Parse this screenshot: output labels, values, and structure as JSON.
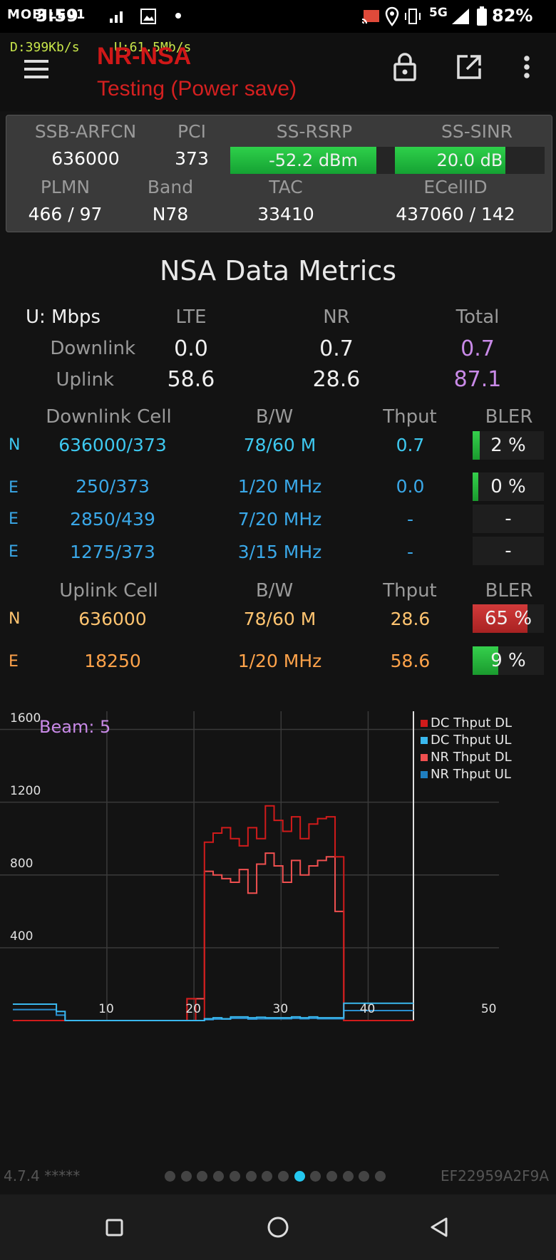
{
  "status_bar": {
    "carrier_logo": "MOBILE01",
    "time": "3:59",
    "network": "5G",
    "battery": "82%",
    "icons": [
      "wifi-calling-icon",
      "image-icon",
      "cast-icon",
      "location-icon",
      "vibrate-icon",
      "signal-icon",
      "battery-icon"
    ]
  },
  "header": {
    "download_rate": "D:399Kb/s",
    "upload_rate": "U:61.5Mb/s",
    "title": "NR-NSA",
    "subtitle": "Testing (Power save)",
    "icons": [
      "menu-icon",
      "lock-icon",
      "open-external-icon",
      "more-vert-icon"
    ]
  },
  "signal_panel": {
    "ssb_arfcn_label": "SSB-ARFCN",
    "ssb_arfcn": "636000",
    "pci_label": "PCI",
    "pci": "373",
    "rsrp_label": "SS-RSRP",
    "rsrp": "-52.2 dBm",
    "rsrp_level": 0.88,
    "sinr_label": "SS-SINR",
    "sinr": "20.0 dB",
    "sinr_level": 0.74,
    "plmn_label": "PLMN",
    "plmn": "466 / 97",
    "band_label": "Band",
    "band": "N78",
    "tac_label": "TAC",
    "tac": "33410",
    "ecellid_label": "ECellID",
    "ecellid": "437060 / 142"
  },
  "metrics": {
    "title": "NSA Data Metrics",
    "unit": "U: Mbps",
    "col_lte": "LTE",
    "col_nr": "NR",
    "col_total": "Total",
    "downlink_label": "Downlink",
    "downlink": {
      "lte": "0.0",
      "nr": "0.7",
      "total": "0.7"
    },
    "uplink_label": "Uplink",
    "uplink": {
      "lte": "58.6",
      "nr": "28.6",
      "total": "87.1"
    }
  },
  "downlink_cells": {
    "headers": {
      "cell": "Downlink Cell",
      "bw": "B/W",
      "thput": "Thput",
      "bler": "BLER"
    },
    "rows": [
      {
        "rat": "N",
        "cell": "636000/373",
        "bw": "78/60 M",
        "thput": "0.7",
        "bler": "2 %",
        "bler_level": 0.1
      },
      {
        "rat": "E",
        "cell": "250/373",
        "bw": "1/20 MHz",
        "thput": "0.0",
        "bler": "0 %",
        "bler_level": 0.08
      },
      {
        "rat": "E",
        "cell": "2850/439",
        "bw": "7/20 MHz",
        "thput": "-",
        "bler": "-",
        "bler_level": 0
      },
      {
        "rat": "E",
        "cell": "1275/373",
        "bw": "3/15 MHz",
        "thput": "-",
        "bler": "-",
        "bler_level": 0
      }
    ]
  },
  "uplink_cells": {
    "headers": {
      "cell": "Uplink Cell",
      "bw": "B/W",
      "thput": "Thput",
      "bler": "BLER"
    },
    "rows": [
      {
        "rat": "N",
        "cell": "636000",
        "bw": "78/60 M",
        "thput": "28.6",
        "bler": "65 %",
        "bler_level": 0.77
      },
      {
        "rat": "E",
        "cell": "18250",
        "bw": "1/20 MHz",
        "thput": "58.6",
        "bler": "9 %",
        "bler_level": 0.36
      }
    ]
  },
  "chart_data": {
    "type": "line",
    "annotation": "Beam: 5",
    "xlim": [
      0,
      50
    ],
    "ylim": [
      0,
      1700
    ],
    "x_ticks": [
      "10",
      "20",
      "30",
      "40",
      "50"
    ],
    "y_ticks": [
      "400",
      "800",
      "1200",
      "1600"
    ],
    "grid": true,
    "legend_position": "top-right",
    "colors": {
      "DC Thput DL": "#d11b1b",
      "DC Thput UL": "#3ab8ee",
      "NR Thput DL": "#f05050",
      "NR Thput UL": "#2a8fd0"
    },
    "x": [
      0,
      1,
      2,
      3,
      4,
      5,
      6,
      7,
      8,
      9,
      10,
      11,
      12,
      13,
      14,
      15,
      16,
      17,
      18,
      19,
      20,
      21,
      22,
      23,
      24,
      25,
      26,
      27,
      28,
      29,
      30,
      31,
      32,
      33,
      34,
      35,
      36,
      37,
      38,
      39,
      40,
      41,
      42,
      43,
      44,
      45,
      46
    ],
    "series": [
      {
        "name": "DC Thput DL",
        "values": [
          0,
          0,
          0,
          0,
          0,
          0,
          0,
          0,
          0,
          0,
          0,
          0,
          0,
          0,
          0,
          0,
          0,
          0,
          0,
          0,
          120,
          0,
          980,
          1030,
          1060,
          1000,
          960,
          1060,
          1000,
          1180,
          1100,
          1040,
          1120,
          1000,
          1080,
          1110,
          1120,
          900,
          0,
          0,
          0,
          0,
          0,
          0,
          0,
          0,
          0
        ]
      },
      {
        "name": "DC Thput UL",
        "values": [
          90,
          90,
          90,
          90,
          90,
          50,
          0,
          0,
          0,
          0,
          0,
          0,
          0,
          0,
          0,
          0,
          0,
          0,
          0,
          0,
          0,
          0,
          10,
          15,
          10,
          20,
          20,
          15,
          18,
          15,
          15,
          15,
          20,
          15,
          20,
          15,
          15,
          15,
          95,
          95,
          95,
          95,
          95,
          95,
          95,
          95,
          95
        ]
      },
      {
        "name": "NR Thput DL",
        "values": [
          0,
          0,
          0,
          0,
          0,
          0,
          0,
          0,
          0,
          0,
          0,
          0,
          0,
          0,
          0,
          0,
          0,
          0,
          0,
          0,
          120,
          120,
          820,
          800,
          780,
          760,
          830,
          700,
          860,
          920,
          850,
          760,
          880,
          800,
          850,
          880,
          900,
          600,
          0,
          0,
          0,
          0,
          0,
          0,
          0,
          0,
          0
        ]
      },
      {
        "name": "NR Thput UL",
        "values": [
          60,
          60,
          60,
          60,
          60,
          30,
          0,
          0,
          0,
          0,
          0,
          0,
          0,
          0,
          0,
          0,
          0,
          0,
          0,
          0,
          0,
          0,
          5,
          8,
          8,
          12,
          12,
          8,
          10,
          10,
          10,
          10,
          12,
          10,
          12,
          10,
          10,
          10,
          55,
          55,
          55,
          55,
          55,
          55,
          55,
          55,
          55
        ]
      }
    ]
  },
  "footer": {
    "version": "4.7.4 *****",
    "device_id": "EF22959A2F9A",
    "page_count": 14,
    "active_page": 8
  },
  "nav_bar": {
    "icons": [
      "recents-icon",
      "home-icon",
      "back-icon"
    ]
  }
}
